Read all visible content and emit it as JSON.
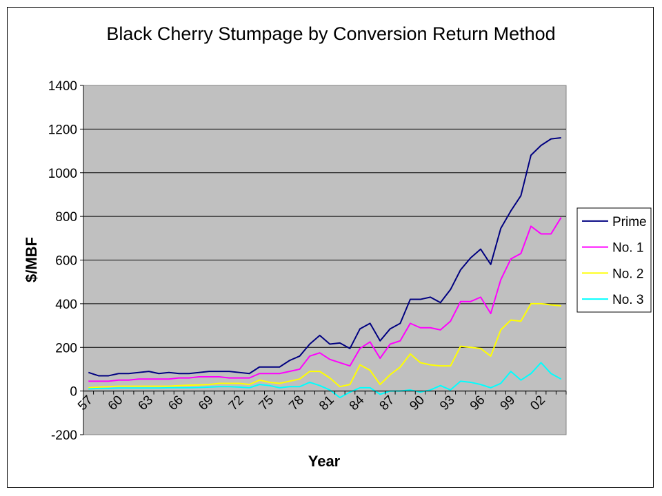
{
  "chart_data": {
    "type": "line",
    "title": "Black Cherry Stumpage by Conversion Return Method",
    "xlabel": "Year",
    "ylabel": "$/MBF",
    "ylim": [
      -200,
      1400
    ],
    "yticks": [
      -200,
      0,
      200,
      400,
      600,
      800,
      1000,
      1200,
      1400
    ],
    "x": [
      1957,
      1958,
      1959,
      1960,
      1961,
      1962,
      1963,
      1964,
      1965,
      1966,
      1967,
      1968,
      1969,
      1970,
      1971,
      1972,
      1973,
      1974,
      1975,
      1976,
      1977,
      1978,
      1979,
      1980,
      1981,
      1982,
      1983,
      1984,
      1985,
      1986,
      1987,
      1988,
      1989,
      1990,
      1991,
      1992,
      1993,
      1994,
      1995,
      1996,
      1997,
      1998,
      1999,
      2000,
      2001,
      2002,
      2003,
      2004
    ],
    "xtick_labels": [
      "57",
      "60",
      "63",
      "66",
      "69",
      "72",
      "75",
      "78",
      "81",
      "84",
      "87",
      "90",
      "93",
      "96",
      "99",
      "02"
    ],
    "xtick_years": [
      1957,
      1960,
      1963,
      1966,
      1969,
      1972,
      1975,
      1978,
      1981,
      1984,
      1987,
      1990,
      1993,
      1996,
      1999,
      2002
    ],
    "grid": true,
    "plot_background": "#c0c0c0",
    "legend_position": "right",
    "series": [
      {
        "name": "Prime",
        "color": "#000080",
        "values": [
          85,
          70,
          70,
          80,
          80,
          85,
          90,
          80,
          85,
          80,
          80,
          85,
          90,
          90,
          90,
          85,
          80,
          110,
          110,
          110,
          140,
          160,
          215,
          255,
          215,
          220,
          195,
          285,
          310,
          230,
          285,
          310,
          420,
          420,
          430,
          405,
          465,
          555,
          610,
          650,
          580,
          745,
          825,
          895,
          1080,
          1125,
          1155,
          1160
        ]
      },
      {
        "name": "No. 1",
        "color": "#ff00ff",
        "values": [
          45,
          45,
          45,
          50,
          50,
          55,
          55,
          55,
          55,
          60,
          60,
          65,
          65,
          65,
          60,
          60,
          60,
          80,
          80,
          80,
          90,
          100,
          160,
          175,
          145,
          130,
          115,
          195,
          225,
          150,
          215,
          230,
          310,
          290,
          290,
          280,
          320,
          410,
          410,
          430,
          355,
          510,
          605,
          630,
          755,
          720,
          720,
          795
        ]
      },
      {
        "name": "No. 2",
        "color": "#ffff00",
        "values": [
          15,
          18,
          20,
          22,
          22,
          22,
          22,
          22,
          22,
          25,
          27,
          28,
          30,
          35,
          35,
          35,
          30,
          50,
          40,
          35,
          45,
          55,
          90,
          90,
          60,
          20,
          30,
          120,
          95,
          30,
          75,
          110,
          170,
          130,
          120,
          115,
          115,
          205,
          200,
          195,
          160,
          280,
          325,
          320,
          400,
          400,
          395,
          390
        ]
      },
      {
        "name": "No. 3",
        "color": "#00ffff",
        "values": [
          10,
          12,
          12,
          14,
          14,
          14,
          14,
          14,
          15,
          15,
          15,
          16,
          18,
          20,
          20,
          18,
          15,
          30,
          25,
          15,
          20,
          20,
          40,
          25,
          5,
          -30,
          -5,
          15,
          15,
          -15,
          0,
          0,
          5,
          -5,
          5,
          25,
          5,
          45,
          40,
          30,
          15,
          35,
          90,
          50,
          80,
          130,
          80,
          55
        ]
      }
    ]
  }
}
